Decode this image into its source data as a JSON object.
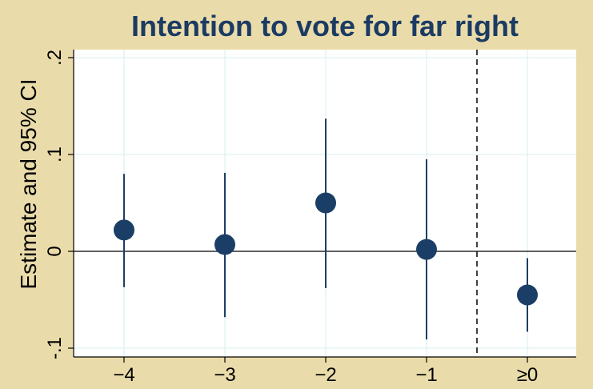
{
  "chart_data": {
    "type": "scatter",
    "title": "Intention to vote for far right",
    "xlabel": "",
    "ylabel": "Estimate and 95% CI",
    "categories": [
      "−4",
      "−3",
      "−2",
      "−1",
      "≥0"
    ],
    "estimates": [
      0.022,
      0.007,
      0.05,
      0.002,
      -0.045
    ],
    "ci_low": [
      -0.037,
      -0.068,
      -0.038,
      -0.091,
      -0.083
    ],
    "ci_high": [
      0.08,
      0.081,
      0.137,
      0.095,
      -0.007
    ],
    "yticks": [
      -0.1,
      0,
      0.1,
      0.2
    ],
    "ytick_labels": [
      "-.1",
      "0",
      ".1",
      ".2"
    ],
    "ylim": [
      -0.1,
      0.2
    ],
    "grid": true,
    "reference_line_y": 0,
    "vertical_divider": "dashed line between −1 and ≥0",
    "colors": {
      "background": "#eadcaa",
      "plot_area": "#ffffff",
      "marker": "#1b3e66",
      "title": "#1b3b63",
      "grid": "#d8ecec"
    }
  }
}
